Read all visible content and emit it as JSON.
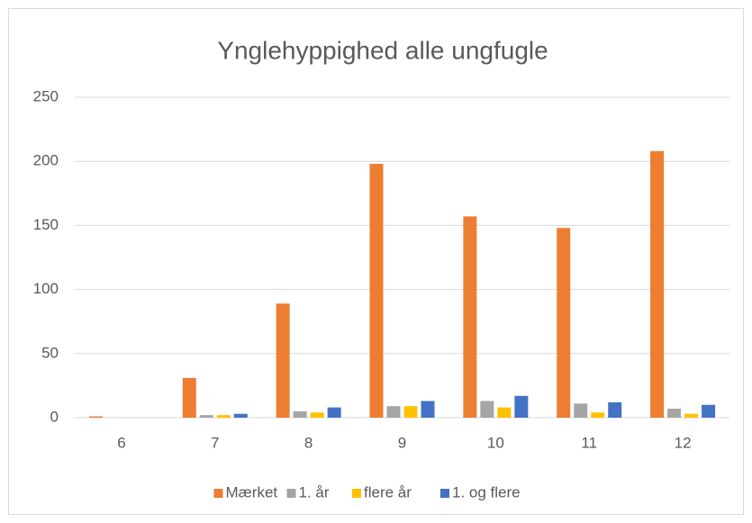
{
  "chart_data": {
    "type": "bar",
    "title": "Ynglehyppighed alle ungfugle",
    "categories": [
      "6",
      "7",
      "8",
      "9",
      "10",
      "11",
      "12"
    ],
    "series": [
      {
        "name": "Mærket",
        "color": "#ed7d31",
        "values": [
          1,
          31,
          89,
          198,
          157,
          148,
          208
        ]
      },
      {
        "name": "1. år",
        "color": "#a5a5a5",
        "values": [
          0,
          2,
          5,
          9,
          13,
          11,
          7
        ]
      },
      {
        "name": "flere år",
        "color": "#ffc000",
        "values": [
          0,
          2,
          4,
          9,
          8,
          4,
          3
        ]
      },
      {
        "name": "1. og flere",
        "color": "#4472c4",
        "values": [
          0,
          3,
          8,
          13,
          17,
          12,
          10
        ]
      }
    ],
    "ylim": [
      0,
      250
    ],
    "yticks": [
      0,
      50,
      100,
      150,
      200,
      250
    ],
    "grid": true,
    "legend": "bottom"
  }
}
